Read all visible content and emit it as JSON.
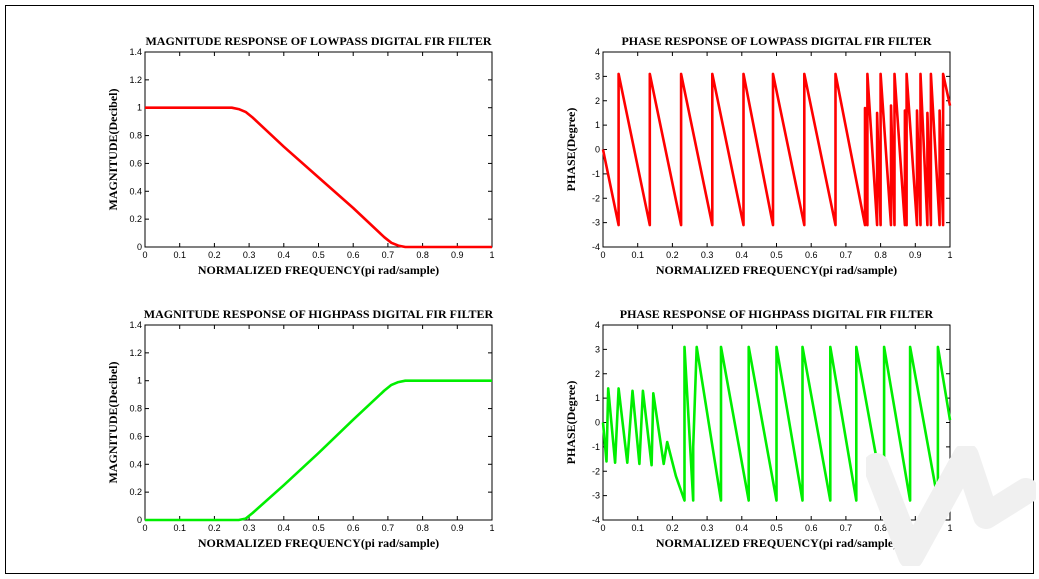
{
  "charts": [
    {
      "id": "lp-mag",
      "type": "line",
      "title": "MAGNITUDE RESPONSE OF LOWPASS DIGITAL FIR FILTER",
      "xlabel": "NORMALIZED FREQUENCY(pi rad/sample)",
      "ylabel": "MAGNITUDE(Decibel)",
      "xlim": [
        0,
        1
      ],
      "ylim": [
        0,
        1.4
      ],
      "xticks": [
        "0",
        "0.1",
        "0.2",
        "0.3",
        "0.4",
        "0.5",
        "0.6",
        "0.7",
        "0.8",
        "0.9",
        "1"
      ],
      "yticks": [
        "0",
        "0.2",
        "0.4",
        "0.6",
        "0.8",
        "1",
        "1.2",
        "1.4"
      ],
      "color": "#ff0000",
      "series": [
        {
          "x": [
            0,
            0.25,
            0.27,
            0.29,
            0.31,
            0.4,
            0.5,
            0.6,
            0.69,
            0.71,
            0.73,
            0.75,
            1
          ],
          "y": [
            1,
            1,
            0.99,
            0.97,
            0.93,
            0.72,
            0.5,
            0.28,
            0.07,
            0.03,
            0.01,
            0,
            0
          ]
        }
      ]
    },
    {
      "id": "lp-phase",
      "type": "line",
      "title": "PHASE RESPONSE OF LOWPASS DIGITAL FIR FILTER",
      "xlabel": "NORMALIZED FREQUENCY(pi rad/sample)",
      "ylabel": "PHASE(Degree)",
      "xlim": [
        0,
        1
      ],
      "ylim": [
        -4,
        4
      ],
      "xticks": [
        "0",
        "0.1",
        "0.2",
        "0.3",
        "0.4",
        "0.5",
        "0.6",
        "0.7",
        "0.8",
        "0.9",
        "1"
      ],
      "yticks": [
        "-4",
        "-3",
        "-2",
        "-1",
        "0",
        "1",
        "2",
        "3",
        "4"
      ],
      "color": "#ff0000",
      "series": [
        {
          "x": [
            0,
            0.045,
            0.045,
            0.135,
            0.135,
            0.225,
            0.225,
            0.315,
            0.315,
            0.405,
            0.405,
            0.49,
            0.49,
            0.58,
            0.58,
            0.67,
            0.67,
            0.755,
            0.755,
            0.762,
            0.762,
            0.79,
            0.79,
            0.8,
            0.8,
            0.83,
            0.83,
            0.84,
            0.84,
            0.87,
            0.87,
            0.875,
            0.875,
            0.905,
            0.905,
            0.915,
            0.915,
            0.935,
            0.935,
            0.945,
            0.945,
            0.97,
            0.97,
            0.98,
            0.98,
            1
          ],
          "y": [
            0,
            -3.1,
            3.1,
            -3.1,
            3.1,
            -3.1,
            3.1,
            -3.1,
            3.1,
            -3.1,
            3.1,
            -3.1,
            3.1,
            -3.1,
            3.1,
            -3.1,
            3.1,
            -3.1,
            1.7,
            -3.1,
            3.1,
            -3.1,
            1.5,
            -3.1,
            3.1,
            -3.1,
            1.8,
            -3.1,
            3.1,
            -3.1,
            1.6,
            -3.1,
            3.1,
            -3.1,
            1.6,
            -3.1,
            3.1,
            -3.1,
            1.5,
            -3.1,
            3.1,
            -3.1,
            1.6,
            -3.1,
            3.1,
            1.8
          ]
        }
      ]
    },
    {
      "id": "hp-mag",
      "type": "line",
      "title": "MAGNITUDE RESPONSE OF HIGHPASS DIGITAL FIR FILTER",
      "xlabel": "NORMALIZED FREQUENCY(pi rad/sample)",
      "ylabel": "MAGNITUDE(Decibel)",
      "xlim": [
        0,
        1
      ],
      "ylim": [
        0,
        1.4
      ],
      "xticks": [
        "0",
        "0.1",
        "0.2",
        "0.3",
        "0.4",
        "0.5",
        "0.6",
        "0.7",
        "0.8",
        "0.9",
        "1"
      ],
      "yticks": [
        "0",
        "0.2",
        "0.4",
        "0.6",
        "0.8",
        "1",
        "1.2",
        "1.4"
      ],
      "color": "#00ee00",
      "series": [
        {
          "x": [
            0,
            0.25,
            0.27,
            0.29,
            0.31,
            0.4,
            0.5,
            0.6,
            0.69,
            0.71,
            0.73,
            0.75,
            1
          ],
          "y": [
            0,
            0,
            0,
            0.01,
            0.05,
            0.25,
            0.48,
            0.72,
            0.93,
            0.97,
            0.99,
            1,
            1
          ]
        }
      ]
    },
    {
      "id": "hp-phase",
      "type": "line",
      "title": "PHASE RESPONSE OF HIGHPASS DIGITAL FIR FILTER",
      "xlabel": "NORMALIZED FREQUENCY(pi rad/sample)",
      "ylabel": "PHASE(Degree)",
      "xlim": [
        0,
        1
      ],
      "ylim": [
        -4,
        4
      ],
      "xticks": [
        "0",
        "0.1",
        "0.2",
        "0.3",
        "0.4",
        "0.5",
        "0.6",
        "0.7",
        "0.8",
        "0.9",
        "1"
      ],
      "yticks": [
        "-4",
        "-3",
        "-2",
        "-1",
        "0",
        "1",
        "2",
        "3",
        "4"
      ],
      "color": "#00ee00",
      "series": [
        {
          "x": [
            0,
            0.01,
            0.015,
            0.035,
            0.045,
            0.07,
            0.085,
            0.105,
            0.115,
            0.14,
            0.145,
            0.175,
            0.185,
            0.21,
            0.235,
            0.235,
            0.26,
            0.26,
            0.27,
            0.27,
            0.34,
            0.34,
            0.42,
            0.42,
            0.5,
            0.5,
            0.575,
            0.575,
            0.655,
            0.655,
            0.73,
            0.73,
            0.81,
            0.81,
            0.885,
            0.885,
            0.965,
            0.965,
            1
          ],
          "y": [
            0,
            -1.6,
            1.4,
            -1.65,
            1.4,
            -1.65,
            1.3,
            -1.7,
            1.3,
            -1.75,
            1.2,
            -1.7,
            -0.8,
            -2.2,
            -3.2,
            3.1,
            -3.2,
            -1,
            3.1,
            3.1,
            -3.2,
            3.1,
            -3.2,
            3.1,
            -3.2,
            3.1,
            -3.2,
            3.1,
            -3.2,
            3.1,
            -3.2,
            3.1,
            -3.2,
            3.1,
            -3.2,
            3.1,
            -3.2,
            3.1,
            0.1
          ]
        }
      ]
    }
  ]
}
